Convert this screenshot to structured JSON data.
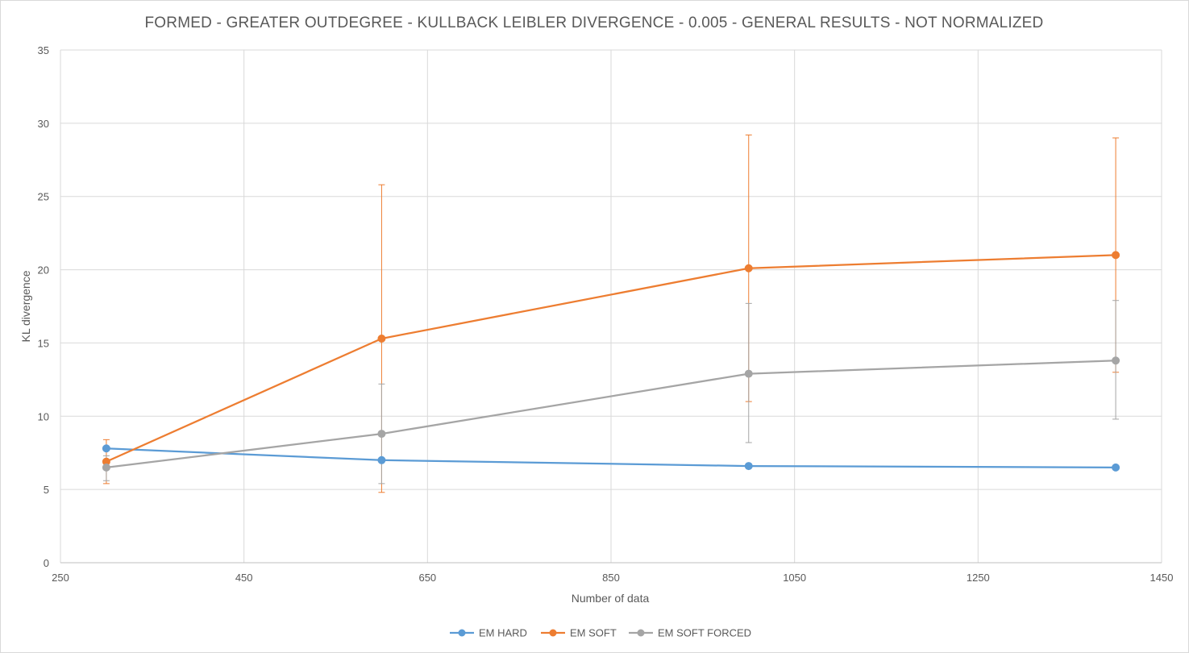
{
  "chart_data": {
    "type": "scatter",
    "title": "FORMED - GREATER OUTDEGREE - KULLBACK LEIBLER DIVERGENCE - 0.005 - GENERAL RESULTS - NOT NORMALIZED",
    "xlabel": "Number of data",
    "ylabel": "KL divergence",
    "xlim": [
      250,
      1450
    ],
    "ylim": [
      0,
      35
    ],
    "xticks": [
      250,
      450,
      650,
      850,
      1050,
      1250,
      1450
    ],
    "yticks": [
      0,
      5,
      10,
      15,
      20,
      25,
      30,
      35
    ],
    "grid": true,
    "legend_position": "bottom",
    "series": [
      {
        "name": "EM HARD",
        "color": "#5b9bd5",
        "x": [
          300,
          600,
          1000,
          1400
        ],
        "y": [
          7.8,
          7.0,
          6.6,
          6.5
        ],
        "err_low": [
          null,
          null,
          null,
          null
        ],
        "err_high": [
          null,
          null,
          null,
          null
        ]
      },
      {
        "name": "EM SOFT",
        "color": "#ed7d31",
        "x": [
          300,
          600,
          1000,
          1400
        ],
        "y": [
          6.9,
          15.3,
          20.1,
          21.0
        ],
        "err_low": [
          5.4,
          4.8,
          11.0,
          13.0
        ],
        "err_high": [
          8.4,
          25.8,
          29.2,
          29.0
        ]
      },
      {
        "name": "EM SOFT FORCED",
        "color": "#a5a5a5",
        "x": [
          300,
          600,
          1000,
          1400
        ],
        "y": [
          6.5,
          8.8,
          12.9,
          13.8
        ],
        "err_low": [
          5.6,
          5.4,
          8.2,
          9.8
        ],
        "err_high": [
          7.3,
          12.2,
          17.7,
          17.9
        ]
      }
    ]
  }
}
